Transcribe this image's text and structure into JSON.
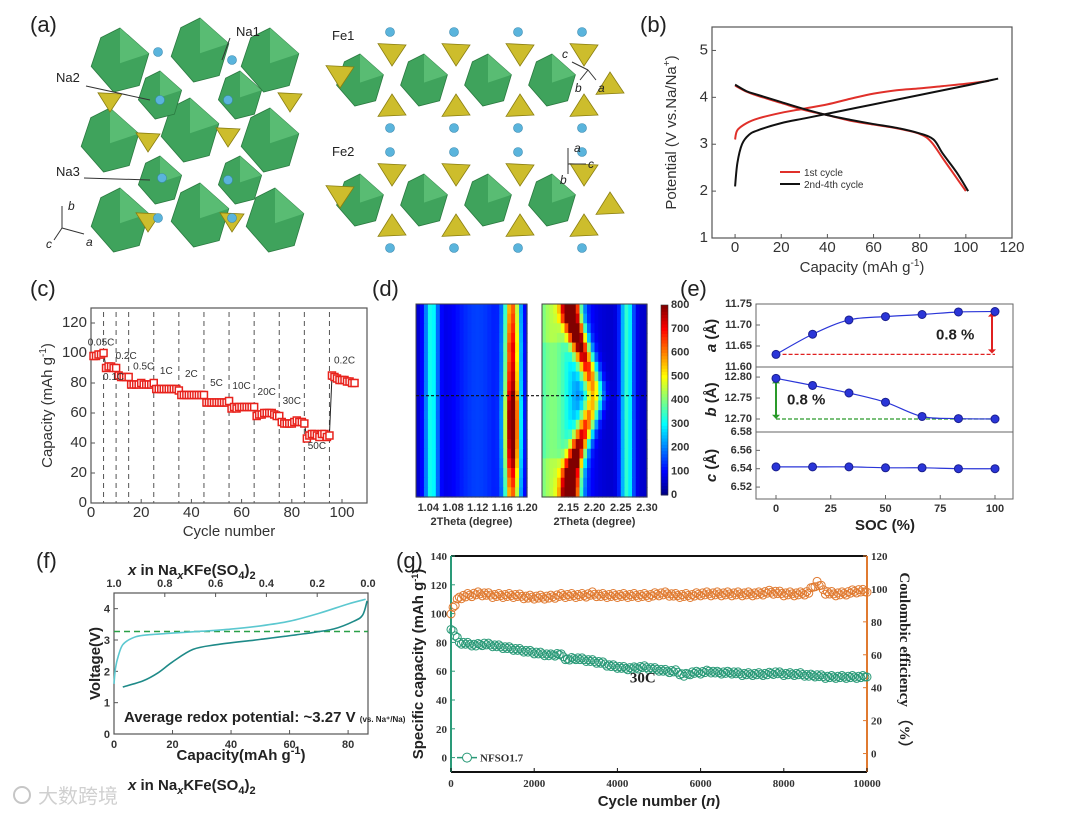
{
  "panel_labels": {
    "a": "(a)",
    "b": "(b)",
    "c": "(c)",
    "d": "(d)",
    "e": "(e)",
    "f": "(f)",
    "g": "(g)"
  },
  "structure": {
    "labels": {
      "na1": "Na1",
      "na2": "Na2",
      "na3": "Na3",
      "fe1": "Fe1",
      "fe2": "Fe2"
    },
    "axes_left": {
      "b": "b",
      "c": "c",
      "a": "a"
    },
    "axes_fe1": {
      "c": "c",
      "b": "b",
      "a": "a"
    },
    "axes_fe2": {
      "a": "a",
      "c": "c",
      "b": "b"
    },
    "colors": {
      "octahedra": "#3fa35c",
      "tetrahedra": "#cdbd2c",
      "na": "#5ab4dc"
    }
  },
  "chart_data": [
    {
      "id": "b",
      "type": "line",
      "xlabel": "Capacity (mAh g",
      "xlabel_sup": "-1",
      "xlabel_end": ")",
      "ylabel": "Potential (V vs.Na/Na",
      "ylabel_sup": "+",
      "ylabel_end": ")",
      "xlim": [
        -10,
        120
      ],
      "ylim": [
        1,
        5.5
      ],
      "xticks": [
        0,
        20,
        40,
        60,
        80,
        100,
        120
      ],
      "yticks": [
        1,
        2,
        3,
        4,
        5
      ],
      "legend_position": "center-left",
      "series": [
        {
          "name": "1st cycle",
          "color": "#e0302a",
          "segments": [
            [
              [
                0,
                3.1
              ],
              [
                1,
                3.3
              ],
              [
                5,
                3.45
              ],
              [
                10,
                3.55
              ],
              [
                20,
                3.67
              ],
              [
                30,
                3.76
              ],
              [
                40,
                3.85
              ],
              [
                50,
                3.97
              ],
              [
                60,
                4.08
              ],
              [
                70,
                4.15
              ],
              [
                80,
                4.19
              ],
              [
                90,
                4.24
              ],
              [
                100,
                4.29
              ],
              [
                110,
                4.35
              ]
            ],
            [
              [
                0,
                4.25
              ],
              [
                5,
                4.12
              ],
              [
                10,
                4.03
              ],
              [
                20,
                3.88
              ],
              [
                30,
                3.73
              ],
              [
                40,
                3.62
              ],
              [
                50,
                3.5
              ],
              [
                60,
                3.42
              ],
              [
                70,
                3.34
              ],
              [
                80,
                3.22
              ],
              [
                85,
                3.05
              ],
              [
                90,
                2.7
              ],
              [
                95,
                2.35
              ],
              [
                100,
                2.0
              ]
            ]
          ]
        },
        {
          "name": "2nd-4th cycle",
          "color": "#111111",
          "segments": [
            [
              [
                0,
                2.1
              ],
              [
                1,
                2.6
              ],
              [
                3,
                3.0
              ],
              [
                6,
                3.2
              ],
              [
                10,
                3.3
              ],
              [
                20,
                3.45
              ],
              [
                30,
                3.55
              ],
              [
                40,
                3.65
              ],
              [
                60,
                3.85
              ],
              [
                80,
                4.05
              ],
              [
                100,
                4.25
              ],
              [
                114,
                4.4
              ]
            ],
            [
              [
                0,
                4.27
              ],
              [
                5,
                4.13
              ],
              [
                10,
                4.05
              ],
              [
                20,
                3.9
              ],
              [
                30,
                3.75
              ],
              [
                40,
                3.62
              ],
              [
                50,
                3.52
              ],
              [
                60,
                3.43
              ],
              [
                70,
                3.35
              ],
              [
                80,
                3.23
              ],
              [
                86,
                3.1
              ],
              [
                90,
                2.8
              ],
              [
                96,
                2.4
              ],
              [
                101,
                2.0
              ]
            ]
          ]
        }
      ]
    },
    {
      "id": "c",
      "type": "scatter",
      "xlabel": "Cycle number",
      "ylabel": "Capacity (mAh g",
      "ylabel_sup": "-1",
      "ylabel_end": ")",
      "xlim": [
        0,
        110
      ],
      "ylim": [
        0,
        130
      ],
      "xticks": [
        0,
        20,
        40,
        60,
        80,
        100
      ],
      "yticks": [
        0,
        20,
        40,
        60,
        80,
        100,
        120
      ],
      "color": "#e8221c",
      "rate_boundaries": [
        5,
        10,
        15,
        25,
        35,
        45,
        55,
        65,
        75,
        85,
        95
      ],
      "rate_labels": [
        {
          "text": "0.05C",
          "x": 4,
          "y": 105
        },
        {
          "text": "0.1C",
          "x": 9,
          "y": 82
        },
        {
          "text": "0.2C",
          "x": 14,
          "y": 96
        },
        {
          "text": "0.5C",
          "x": 21,
          "y": 89
        },
        {
          "text": "1C",
          "x": 30,
          "y": 86
        },
        {
          "text": "2C",
          "x": 40,
          "y": 84
        },
        {
          "text": "5C",
          "x": 50,
          "y": 78
        },
        {
          "text": "10C",
          "x": 60,
          "y": 76
        },
        {
          "text": "20C",
          "x": 70,
          "y": 72
        },
        {
          "text": "30C",
          "x": 80,
          "y": 66
        },
        {
          "text": "50C",
          "x": 90,
          "y": 36
        },
        {
          "text": "0.2C",
          "x": 101,
          "y": 93
        }
      ],
      "values": [
        98,
        98,
        99,
        99,
        100,
        90,
        91,
        91,
        90,
        90,
        85,
        84,
        84,
        84,
        84,
        79,
        79,
        79,
        79,
        80,
        79,
        79,
        79,
        79,
        80,
        76,
        76,
        76,
        76,
        76,
        76,
        76,
        76,
        76,
        75,
        72,
        72,
        72,
        72,
        72,
        72,
        72,
        72,
        72,
        72,
        67,
        67,
        67,
        67,
        67,
        67,
        67,
        67,
        67,
        68,
        63,
        64,
        63,
        64,
        64,
        64,
        64,
        64,
        64,
        64,
        58,
        59,
        59,
        60,
        60,
        60,
        60,
        59,
        58,
        58,
        54,
        53,
        53,
        53,
        53,
        54,
        55,
        54,
        54,
        53,
        43,
        45,
        46,
        46,
        45,
        44,
        46,
        46,
        44,
        45,
        85,
        84,
        83,
        82,
        82,
        82,
        81,
        81,
        80,
        80
      ]
    },
    {
      "id": "d",
      "type": "heatmap",
      "left": {
        "xlim": [
          1.02,
          1.2
        ],
        "xticks": [
          1.04,
          1.08,
          1.12,
          1.16,
          1.2
        ],
        "minor_peak": 1.045,
        "main_peak": 1.176,
        "main_intensity": [
          560,
          580,
          600,
          620,
          650,
          640,
          660,
          680,
          700,
          740,
          780,
          800,
          800,
          790,
          770,
          740,
          700,
          640,
          600,
          560
        ]
      },
      "right": {
        "xlim": [
          2.1,
          2.3
        ],
        "xticks": [
          2.15,
          2.2,
          2.25,
          2.3
        ],
        "minor_peak": 2.262,
        "peak_center": [
          2.155,
          2.157,
          2.163,
          2.168,
          2.174,
          2.18,
          2.186,
          2.191,
          2.196,
          2.198,
          2.195,
          2.19,
          2.184,
          2.178,
          2.172,
          2.166,
          2.161,
          2.157,
          2.155,
          2.154
        ],
        "peak_intensity": [
          800,
          790,
          740,
          700,
          660,
          620,
          580,
          540,
          500,
          470,
          470,
          500,
          540,
          580,
          620,
          660,
          700,
          740,
          790,
          800
        ]
      },
      "xlabel": "2Theta (degree)",
      "colorbar": {
        "min": 0,
        "max": 800,
        "ticks": [
          0,
          100,
          200,
          300,
          400,
          500,
          600,
          700,
          800
        ]
      },
      "divider_row": 9
    },
    {
      "id": "e",
      "type": "line",
      "xlabel": "SOC (%)",
      "xticks": [
        0,
        25,
        50,
        75,
        100
      ],
      "xlim": [
        -8,
        103
      ],
      "x": [
        0,
        16.7,
        33.3,
        50,
        66.7,
        83.3,
        100
      ],
      "color": "#2a35d8",
      "subplots": [
        {
          "ylabel": "a (Å)",
          "ylim": [
            11.6,
            11.75
          ],
          "yticks": [
            "11.60",
            "11.65",
            "11.70",
            "11.75"
          ],
          "values": [
            11.63,
            11.678,
            11.712,
            11.72,
            11.725,
            11.731,
            11.732
          ],
          "annotation": "0.8 %",
          "annotation_color": "#e02020"
        },
        {
          "ylabel": "b (Å)",
          "ylim": [
            12.669,
            12.824
          ],
          "yticks": [
            "12.70",
            "12.75",
            "12.80"
          ],
          "values": [
            12.797,
            12.78,
            12.762,
            12.74,
            12.706,
            12.701,
            12.7
          ],
          "annotation": "0.8 %",
          "annotation_color": "#2a9a2a"
        },
        {
          "ylabel": "c (Å)",
          "ylim": [
            6.507,
            6.58
          ],
          "yticks": [
            "6.52",
            "6.54",
            "6.56",
            "6.58"
          ],
          "values": [
            6.542,
            6.542,
            6.542,
            6.541,
            6.541,
            6.54,
            6.54
          ]
        }
      ]
    },
    {
      "id": "f",
      "type": "line",
      "title_top": {
        "pre": "x",
        "mid": " in Na",
        "sub": "x",
        "post": "KFe(SO",
        "sub2": "4",
        "end": ")",
        "sub3": "2"
      },
      "xlabel": "Capacity(mAh g",
      "xlabel_sup": "-1",
      "xlabel_end": ")",
      "ylabel": "Voltage(V)",
      "xlim": [
        0,
        86.8
      ],
      "ylim": [
        0,
        4.5
      ],
      "xticks": [
        0,
        20,
        40,
        60,
        80
      ],
      "yticks": [
        0,
        1,
        2,
        3,
        4
      ],
      "top_xticks": [
        "1.0",
        "0.8",
        "0.6",
        "0.4",
        "0.2",
        "0.0"
      ],
      "average_potential": 3.27,
      "annotation": "Average redox potential: ~3.27 V",
      "annotation_small": "(vs. Na⁺/Na)",
      "series": [
        {
          "name": "charge",
          "color": "#5cc8d0",
          "points": [
            [
              0,
              1.6
            ],
            [
              0.5,
              2.1
            ],
            [
              1.5,
              2.5
            ],
            [
              3,
              2.85
            ],
            [
              6,
              3.05
            ],
            [
              10,
              3.15
            ],
            [
              20,
              3.22
            ],
            [
              30,
              3.28
            ],
            [
              40,
              3.35
            ],
            [
              50,
              3.45
            ],
            [
              60,
              3.6
            ],
            [
              70,
              3.85
            ],
            [
              80,
              4.15
            ],
            [
              86,
              4.3
            ]
          ]
        },
        {
          "name": "discharge",
          "color": "#1e8a88",
          "points": [
            [
              3,
              1.5
            ],
            [
              10,
              1.7
            ],
            [
              15,
              1.95
            ],
            [
              20,
              2.3
            ],
            [
              27,
              2.7
            ],
            [
              35,
              2.85
            ],
            [
              50,
              3.02
            ],
            [
              65,
              3.2
            ],
            [
              75,
              3.35
            ],
            [
              82,
              3.6
            ],
            [
              85,
              3.8
            ],
            [
              86.5,
              4.25
            ]
          ]
        }
      ]
    },
    {
      "id": "g",
      "type": "scatter",
      "xlabel": "Cycle number (",
      "xlabel_it": "n",
      "xlabel_end": ")",
      "ylabel": "Specific capacity (mAh g",
      "ylabel_sup": "-1",
      "ylabel_end": ")",
      "ylabel_right": "Coulombic efficiency （%）",
      "xlim": [
        0,
        10000
      ],
      "ylim": [
        -10,
        140
      ],
      "ylim_right": [
        -10,
        120
      ],
      "xticks": [
        0,
        2000,
        4000,
        6000,
        8000,
        10000
      ],
      "yticks": [
        0,
        20,
        40,
        60,
        80,
        100,
        120,
        140
      ],
      "yticks_right": [
        0,
        20,
        40,
        60,
        80,
        100,
        120
      ],
      "annotation": "30C",
      "legend": "NFSO1.7",
      "capacity_color": "#2a9a78",
      "ce_color": "#e07a30",
      "x": [
        0,
        200,
        400,
        600,
        800,
        1000,
        1200,
        1400,
        1600,
        1800,
        2000,
        2200,
        2400,
        2600,
        2800,
        3000,
        3200,
        3400,
        3600,
        3800,
        4000,
        4200,
        4400,
        4600,
        4800,
        5000,
        5200,
        5400,
        5600,
        5800,
        6000,
        6200,
        6400,
        6600,
        6800,
        7000,
        7200,
        7400,
        7600,
        7800,
        8000,
        8200,
        8400,
        8600,
        8800,
        9000,
        9200,
        9400,
        9600,
        9800,
        10000
      ],
      "capacity": [
        90,
        80,
        79,
        78,
        79,
        78,
        77,
        76,
        75,
        74,
        73,
        72,
        71,
        72,
        68,
        69,
        68,
        67,
        66,
        64,
        63,
        62,
        62,
        63,
        62,
        61,
        60,
        60,
        57,
        59,
        59,
        60,
        59,
        59,
        59,
        58,
        58,
        58,
        58,
        59,
        58,
        58,
        58,
        57,
        57,
        56,
        56,
        56,
        56,
        56,
        56
      ],
      "coulombic_efficiency": [
        86,
        95,
        96,
        97,
        97,
        96,
        96,
        96,
        96,
        95,
        95,
        95,
        95,
        96,
        96,
        96,
        96,
        97,
        96,
        96,
        96,
        96,
        96,
        96,
        96,
        97,
        97,
        96,
        96,
        96,
        97,
        97,
        97,
        97,
        97,
        97,
        97,
        97,
        98,
        98,
        97,
        97,
        97,
        98,
        104,
        98,
        97,
        97,
        98,
        99,
        98
      ]
    }
  ],
  "footer_caption": {
    "pre": "x",
    "mid": " in Na",
    "sub": "x",
    "post": "KFe(SO",
    "sub2": "4",
    "end": ")",
    "sub3": "2"
  },
  "watermark": "大数跨境"
}
